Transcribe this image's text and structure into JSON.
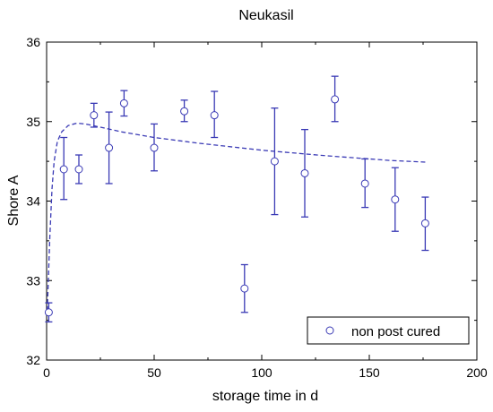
{
  "chart_data": {
    "type": "scatter",
    "title": "Neukasil",
    "xlabel": "storage time in d",
    "ylabel": "Shore A",
    "xlim": [
      0,
      200
    ],
    "ylim": [
      32,
      36
    ],
    "xticks": [
      "0",
      "50",
      "100",
      "150",
      "200"
    ],
    "yticks": [
      "32",
      "33",
      "34",
      "35",
      "36"
    ],
    "grid": false,
    "legend": {
      "placement": "bottom-right",
      "entries": [
        "non post cured"
      ]
    },
    "color": "#3a3ab5",
    "series": [
      {
        "name": "non post cured",
        "points": [
          {
            "x": 1,
            "y": 32.6,
            "err_low": 32.48,
            "err_high": 32.72
          },
          {
            "x": 8,
            "y": 34.4,
            "err_low": 34.02,
            "err_high": 34.8
          },
          {
            "x": 15,
            "y": 34.4,
            "err_low": 34.22,
            "err_high": 34.58
          },
          {
            "x": 22,
            "y": 35.08,
            "err_low": 34.93,
            "err_high": 35.23
          },
          {
            "x": 29,
            "y": 34.67,
            "err_low": 34.22,
            "err_high": 35.12
          },
          {
            "x": 36,
            "y": 35.23,
            "err_low": 35.07,
            "err_high": 35.39
          },
          {
            "x": 50,
            "y": 34.67,
            "err_low": 34.38,
            "err_high": 34.97
          },
          {
            "x": 64,
            "y": 35.13,
            "err_low": 35.0,
            "err_high": 35.27
          },
          {
            "x": 78,
            "y": 35.08,
            "err_low": 34.8,
            "err_high": 35.38
          },
          {
            "x": 92,
            "y": 32.9,
            "err_low": 32.6,
            "err_high": 33.2
          },
          {
            "x": 106,
            "y": 34.5,
            "err_low": 33.83,
            "err_high": 35.17
          },
          {
            "x": 120,
            "y": 34.35,
            "err_low": 33.8,
            "err_high": 34.9
          },
          {
            "x": 134,
            "y": 35.28,
            "err_low": 35.0,
            "err_high": 35.57
          },
          {
            "x": 148,
            "y": 34.22,
            "err_low": 33.92,
            "err_high": 34.53
          },
          {
            "x": 162,
            "y": 34.02,
            "err_low": 33.62,
            "err_high": 34.42
          },
          {
            "x": 176,
            "y": 33.72,
            "err_low": 33.38,
            "err_high": 34.05
          }
        ]
      },
      {
        "style": "dashed",
        "x": [
          0.3,
          0.8,
          1.5,
          2.5,
          3.5,
          5,
          7,
          10,
          14,
          18,
          25,
          35,
          50,
          70,
          100,
          130,
          160,
          176
        ],
        "y": [
          32.62,
          33.0,
          33.55,
          34.15,
          34.5,
          34.75,
          34.87,
          34.95,
          34.98,
          34.97,
          34.93,
          34.87,
          34.8,
          34.73,
          34.64,
          34.57,
          34.51,
          34.49
        ]
      }
    ]
  }
}
